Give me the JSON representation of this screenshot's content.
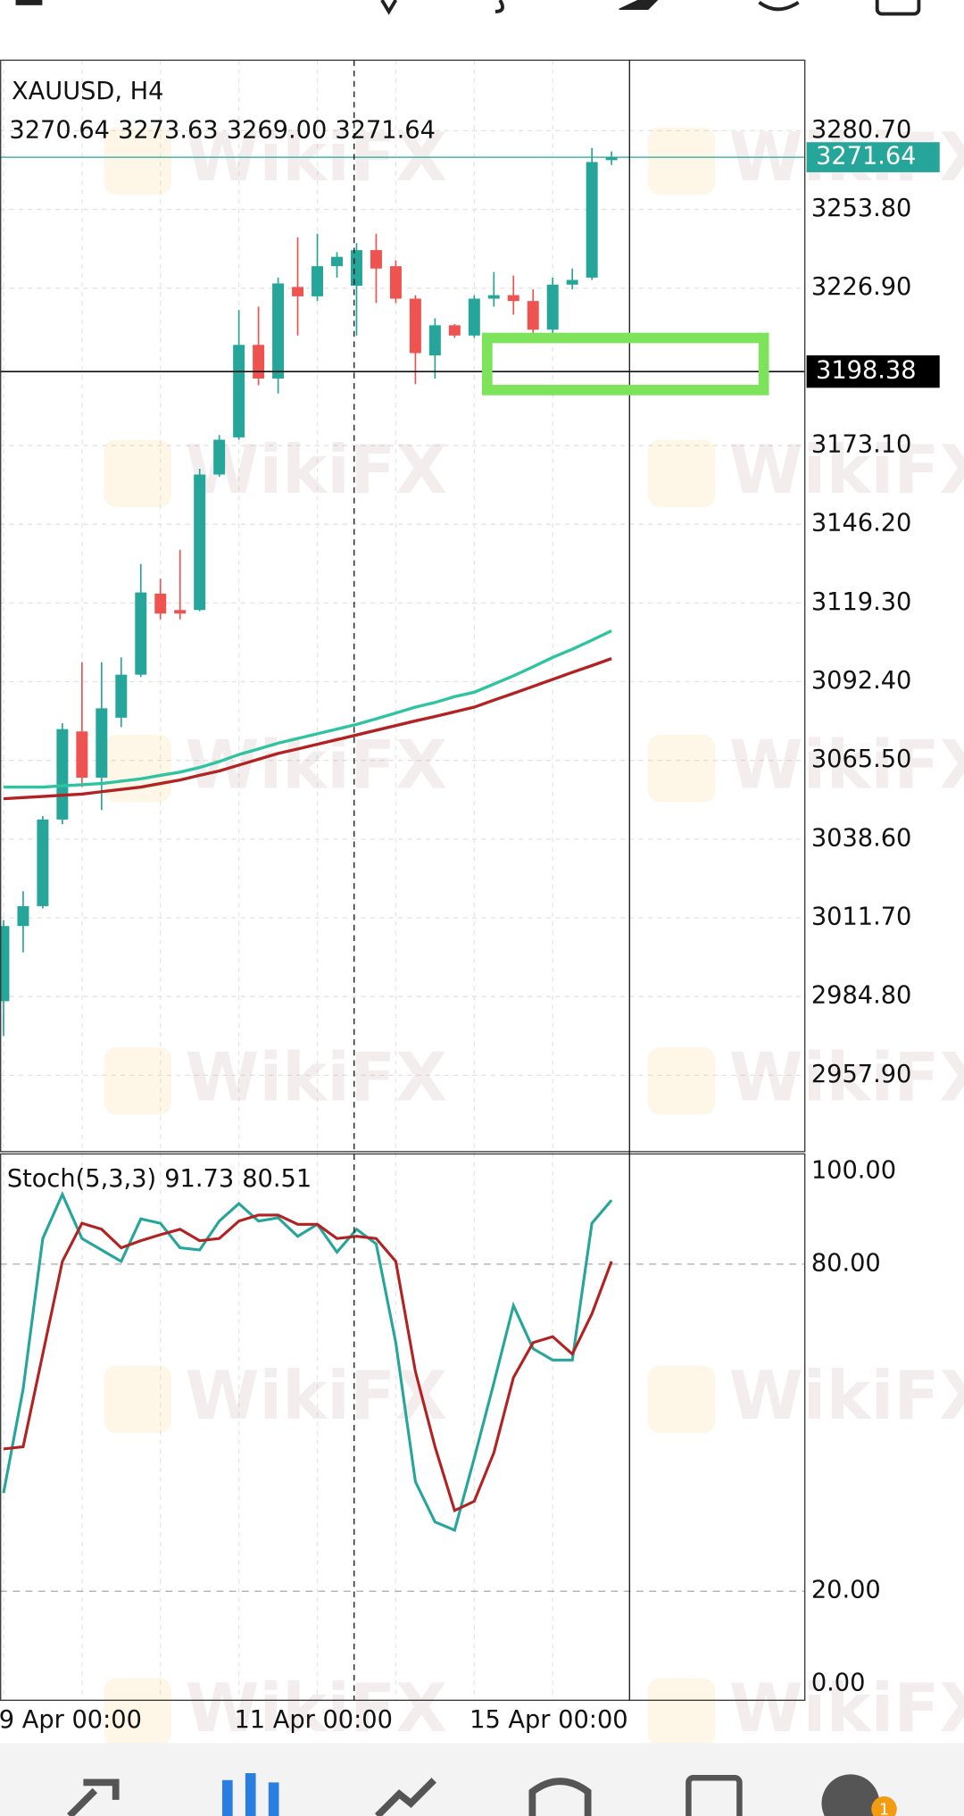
{
  "chart_data": [
    {
      "type": "candlestick",
      "title": "XAUUSD, H4",
      "ohlc_labels": [
        "3270.64",
        "3273.63",
        "3269.00",
        "3271.64"
      ],
      "categories": [
        "9 Apr 00:00",
        null,
        null,
        null,
        null,
        null,
        null,
        null,
        null,
        null,
        null,
        null,
        "11 Apr 00:00",
        null,
        null,
        null,
        null,
        null,
        null,
        null,
        null,
        null,
        null,
        null,
        "15 Apr 00:00",
        null,
        null,
        null,
        null,
        null,
        null,
        null
      ],
      "open": [
        2983.2,
        3008.9,
        3015.7,
        3045.3,
        3075.4,
        3059.6,
        3080.1,
        3094.8,
        3122.5,
        3116.9,
        3116.9,
        3163.2,
        3175.9,
        3207.5,
        3196.0,
        3227.3,
        3224.1,
        3234.4,
        3227.7,
        3239.9,
        3234.4,
        3223.3,
        3203.9,
        3214.2,
        3210.7,
        3223.3,
        3224.5,
        3222.5,
        3212.7,
        3228.1,
        3230.5,
        3270.64
      ],
      "high": [
        3010.9,
        3020.8,
        3046.5,
        3078.2,
        3099.1,
        3099.1,
        3100.7,
        3132.6,
        3127.6,
        3137.5,
        3165.2,
        3176.7,
        3219.4,
        3220.6,
        3230.5,
        3244.3,
        3245.5,
        3239.2,
        3242.3,
        3245.5,
        3236.4,
        3224.5,
        3216.6,
        3214.6,
        3224.5,
        3232.4,
        3231.2,
        3226.5,
        3230.5,
        3233.6,
        3274.8,
        3273.63
      ],
      "low": [
        2971.3,
        2999.9,
        3014.9,
        3043.7,
        3056.4,
        3048.5,
        3076.9,
        3094.0,
        3113.7,
        3113.7,
        3116.5,
        3162.4,
        3175.1,
        3193.7,
        3190.9,
        3210.7,
        3222.5,
        3230.5,
        3210.7,
        3221.8,
        3221.8,
        3194.1,
        3196.0,
        3209.9,
        3209.9,
        3220.6,
        3217.8,
        3210.7,
        3211.5,
        3226.5,
        3229.7,
        3269.0
      ],
      "close": [
        3008.9,
        3015.7,
        3045.3,
        3076.2,
        3059.6,
        3083.3,
        3094.8,
        3122.9,
        3115.7,
        3115.7,
        3163.2,
        3175.1,
        3207.5,
        3196.0,
        3228.5,
        3224.1,
        3234.4,
        3237.6,
        3239.9,
        3233.6,
        3223.3,
        3204.7,
        3214.2,
        3210.7,
        3223.3,
        3224.5,
        3222.5,
        3212.7,
        3228.1,
        3229.7,
        3270.0,
        3271.64
      ],
      "up_color": "#26a69a",
      "down_color": "#ef5350",
      "moving_averages": [
        {
          "color": "#2ec4a0",
          "values": [
            3056.4,
            3056.4,
            3056.4,
            3056.8,
            3057.2,
            3057.6,
            3058.4,
            3059.2,
            3060.4,
            3061.5,
            3063.1,
            3065.1,
            3067.5,
            3069.4,
            3071.4,
            3073.0,
            3074.6,
            3076.2,
            3077.8,
            3079.7,
            3081.7,
            3083.7,
            3085.3,
            3087.3,
            3088.8,
            3091.6,
            3094.4,
            3097.5,
            3100.7,
            3103.5,
            3106.6,
            3109.8
          ]
        },
        {
          "color": "#b22222",
          "values": [
            3052.4,
            3052.8,
            3053.2,
            3053.6,
            3054.0,
            3054.8,
            3055.6,
            3056.4,
            3057.6,
            3058.8,
            3060.4,
            3061.9,
            3063.9,
            3065.9,
            3067.9,
            3069.4,
            3071.0,
            3072.6,
            3074.2,
            3075.8,
            3077.4,
            3079.0,
            3080.5,
            3082.1,
            3083.7,
            3086.1,
            3088.4,
            3090.8,
            3093.2,
            3095.6,
            3097.9,
            3100.3
          ]
        }
      ],
      "crosshair_price": 3198.38,
      "ylim": [
        2931.8,
        3304.8
      ],
      "yticks": [
        {
          "value": 3280.7,
          "label": "3280.70"
        },
        {
          "value": 3253.8,
          "label": "3253.80"
        },
        {
          "value": 3226.9,
          "label": "3226.90"
        },
        {
          "value": 3173.1,
          "label": "3173.10"
        },
        {
          "value": 3146.2,
          "label": "3146.20"
        },
        {
          "value": 3119.3,
          "label": "3119.30"
        },
        {
          "value": 3092.4,
          "label": "3092.40"
        },
        {
          "value": 3065.5,
          "label": "3065.50"
        },
        {
          "value": 3038.6,
          "label": "3038.60"
        },
        {
          "value": 3011.7,
          "label": "3011.70"
        },
        {
          "value": 2984.8,
          "label": "2984.80"
        },
        {
          "value": 2957.9,
          "label": "2957.90"
        }
      ],
      "grid": true,
      "watermark": "WikiFX"
    },
    {
      "type": "line",
      "title": "Stoch(5,3,3)",
      "series": [
        {
          "color": "#26a69a",
          "values": [
            38.0,
            57.1,
            84.7,
            92.8,
            84.7,
            82.6,
            80.5,
            88.3,
            87.5,
            83.0,
            82.6,
            87.9,
            91.1,
            87.9,
            88.5,
            85.1,
            87.3,
            82.2,
            86.4,
            83.7,
            65.6,
            40.1,
            32.7,
            31.2,
            44.4,
            58.2,
            72.4,
            64.5,
            62.4,
            62.4,
            87.5,
            91.73
          ]
        },
        {
          "color": "#b22222",
          "values": [
            46.1,
            46.5,
            63.5,
            80.5,
            87.5,
            86.4,
            83.0,
            84.3,
            85.4,
            86.4,
            84.3,
            84.7,
            87.9,
            89.0,
            89.0,
            87.3,
            87.3,
            84.7,
            85.1,
            84.7,
            80.5,
            60.3,
            46.5,
            34.8,
            36.5,
            45.4,
            59.2,
            65.6,
            66.7,
            63.5,
            70.9,
            80.51
          ]
        }
      ],
      "ylim": [
        0,
        100
      ],
      "yticks": [
        {
          "value": 100,
          "label": "100.00"
        },
        {
          "value": 80,
          "label": "80.00"
        },
        {
          "value": 20,
          "label": "20.00"
        },
        {
          "value": 0,
          "label": "0.00"
        }
      ]
    }
  ],
  "nav": {
    "badge": "1"
  }
}
